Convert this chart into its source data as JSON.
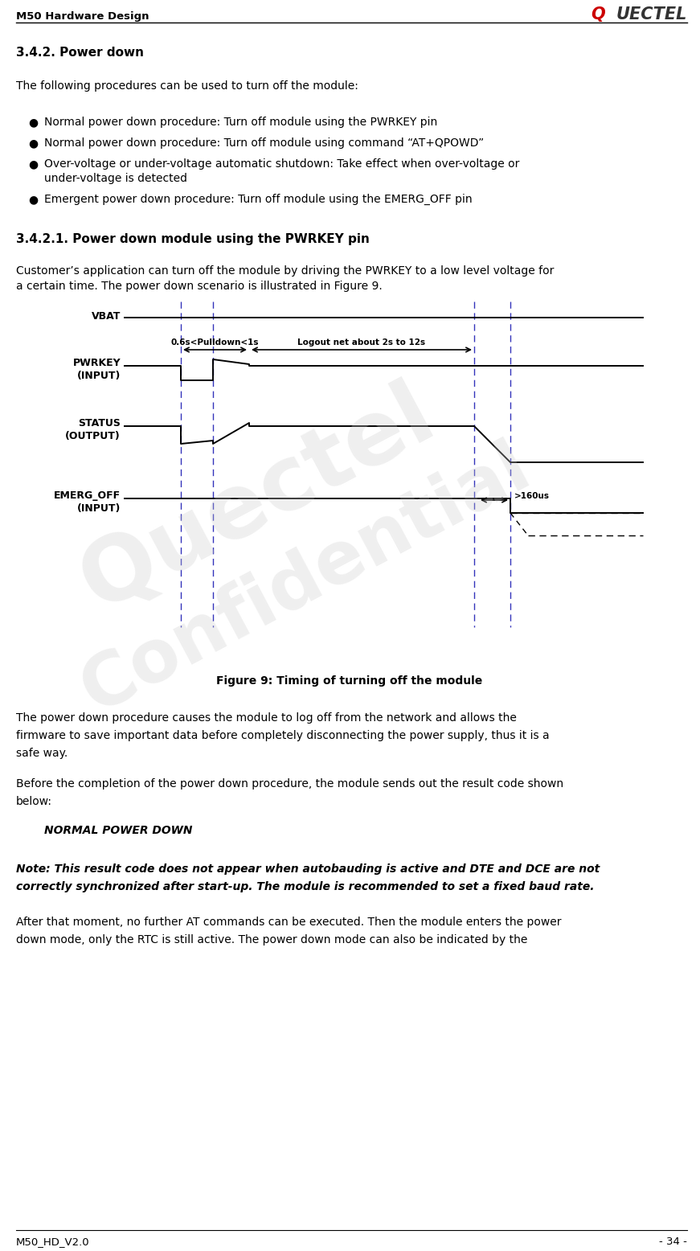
{
  "page_header_left": "M50 Hardware Design",
  "page_footer_left": "M50_HD_V2.0",
  "page_footer_right": "- 34 -",
  "section_title": "3.4.2. Power down",
  "section_intro": "The following procedures can be used to turn off the module:",
  "bullet1": "Normal power down procedure: Turn off module using the PWRKEY pin",
  "bullet2": "Normal power down procedure: Turn off module using command “AT+QPOWD”",
  "bullet3a": "Over-voltage or under-voltage automatic shutdown: Take effect when over-voltage or",
  "bullet3b": "under-voltage is detected",
  "bullet4": "Emergent power down procedure: Turn off module using the EMERG_OFF pin",
  "subsection_title": "3.4.2.1. Power down module using the PWRKEY pin",
  "subpara1": "Customer’s application can turn off the module by driving the PWRKEY to a low level voltage for",
  "subpara2": "a certain time. The power down scenario is illustrated in Figure 9.",
  "figure_caption": "Figure 9: Timing of turning off the module",
  "para1_l1": "The power down procedure causes the module to log off from the network and allows the",
  "para1_l2": "firmware to save important data before completely disconnecting the power supply, thus it is a",
  "para1_l3": "safe way.",
  "para2_l1": "Before the completion of the power down procedure, the module sends out the result code shown",
  "para2_l2": "below:",
  "normal_power_down": "NORMAL POWER DOWN",
  "note_l1": "Note: This result code does not appear when autobauding is active and DTE and DCE are not",
  "note_l2": "correctly synchronized after start-up. The module is recommended to set a fixed baud rate.",
  "para3_l1": "After that moment, no further AT commands can be executed. Then the module enters the power",
  "para3_l2": "down mode, only the RTC is still active. The power down mode can also be indicated by the",
  "watermark1": "Quectel",
  "watermark2": "Confidential",
  "bg_color": "#ffffff",
  "blue_color": "#3333bb",
  "black": "#000000"
}
